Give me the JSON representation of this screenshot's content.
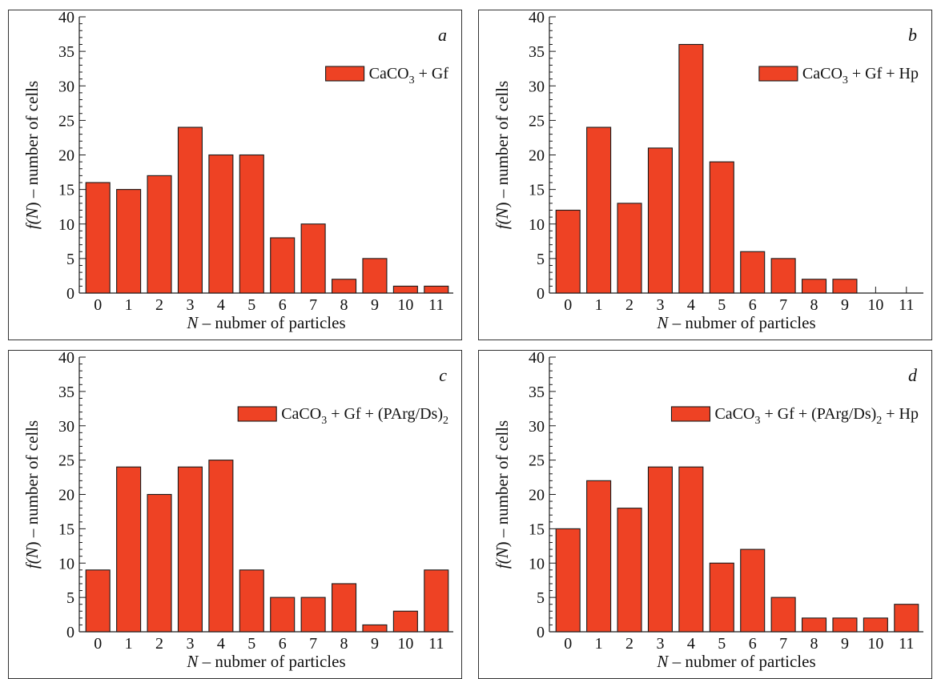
{
  "colors": {
    "bar": "#ee4224",
    "stroke": "#1a1a1a"
  },
  "chart_data": [
    {
      "type": "bar",
      "panel_letter": "a",
      "legend": {
        "formula": [
          "CaCO",
          "3",
          " + Gf"
        ],
        "placement": "top-right"
      },
      "categories": [
        "0",
        "1",
        "2",
        "3",
        "4",
        "5",
        "6",
        "7",
        "8",
        "9",
        "10",
        "11"
      ],
      "values": [
        16,
        15,
        17,
        24,
        20,
        20,
        8,
        10,
        2,
        5,
        1,
        1
      ],
      "xlabel": {
        "var": "N",
        "rest": " – nubmer of particles"
      },
      "ylabel": {
        "f": "f(",
        "var": "N",
        "rest": ") – number of cells"
      },
      "ylim": [
        0,
        40
      ],
      "yticks": [
        "0",
        "5",
        "10",
        "15",
        "20",
        "25",
        "30",
        "35",
        "40"
      ],
      "grid": false
    },
    {
      "type": "bar",
      "panel_letter": "b",
      "legend": {
        "formula": [
          "CaCO",
          "3",
          " + Gf + Hp"
        ],
        "placement": "top-right"
      },
      "categories": [
        "0",
        "1",
        "2",
        "3",
        "4",
        "5",
        "6",
        "7",
        "8",
        "9",
        "10",
        "11"
      ],
      "values": [
        12,
        24,
        13,
        21,
        36,
        19,
        6,
        5,
        2,
        2,
        0,
        0
      ],
      "xlabel": {
        "var": "N",
        "rest": " – nubmer of particles"
      },
      "ylabel": {
        "f": "f(",
        "var": "N",
        "rest": ") – number of cells"
      },
      "ylim": [
        0,
        40
      ],
      "yticks": [
        "0",
        "5",
        "10",
        "15",
        "20",
        "25",
        "30",
        "35",
        "40"
      ],
      "grid": false
    },
    {
      "type": "bar",
      "panel_letter": "c",
      "legend": {
        "formula": [
          "CaCO",
          "3",
          " + Gf + (PArg/Ds)",
          "2",
          ""
        ],
        "placement": "top-right"
      },
      "categories": [
        "0",
        "1",
        "2",
        "3",
        "4",
        "5",
        "6",
        "7",
        "8",
        "9",
        "10",
        "11"
      ],
      "values": [
        9,
        24,
        20,
        24,
        25,
        9,
        5,
        5,
        7,
        1,
        3,
        9
      ],
      "xlabel": {
        "var": "N",
        "rest": " – nubmer of particles"
      },
      "ylabel": {
        "f": "f(",
        "var": "N",
        "rest": ") – number of cells"
      },
      "ylim": [
        0,
        40
      ],
      "yticks": [
        "0",
        "5",
        "10",
        "15",
        "20",
        "25",
        "30",
        "35",
        "40"
      ],
      "grid": false
    },
    {
      "type": "bar",
      "panel_letter": "d",
      "legend": {
        "formula": [
          "CaCO",
          "3",
          " + Gf + (PArg/Ds)",
          "2",
          " + Hp"
        ],
        "placement": "top-right"
      },
      "categories": [
        "0",
        "1",
        "2",
        "3",
        "4",
        "5",
        "6",
        "7",
        "8",
        "9",
        "10",
        "11"
      ],
      "values": [
        15,
        22,
        18,
        24,
        24,
        10,
        12,
        5,
        2,
        2,
        2,
        4
      ],
      "xlabel": {
        "var": "N",
        "rest": " – nubmer of particles"
      },
      "ylabel": {
        "f": "f(",
        "var": "N",
        "rest": ") – number of cells"
      },
      "ylim": [
        0,
        40
      ],
      "yticks": [
        "0",
        "5",
        "10",
        "15",
        "20",
        "25",
        "30",
        "35",
        "40"
      ],
      "grid": false
    }
  ]
}
